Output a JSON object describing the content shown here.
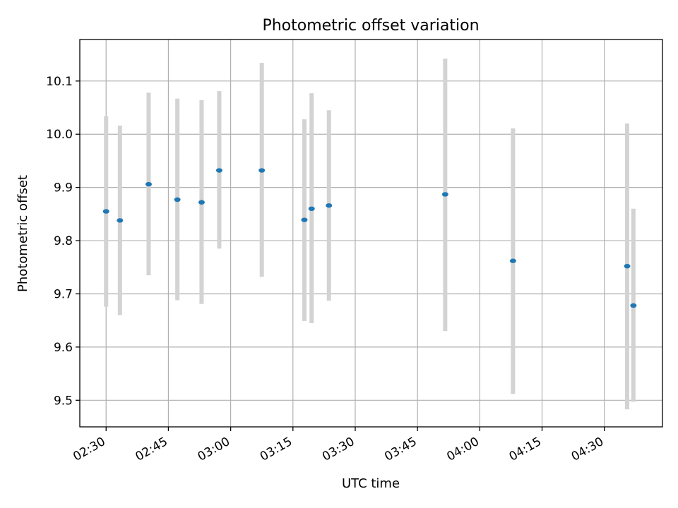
{
  "chart_data": {
    "type": "scatter",
    "title": "Photometric offset variation",
    "xlabel": "UTC time",
    "ylabel": "Photometric offset",
    "x_ticks": [
      "02:30",
      "02:45",
      "03:00",
      "03:15",
      "03:30",
      "03:45",
      "04:00",
      "04:15",
      "04:30"
    ],
    "xlim": [
      "02:23:40",
      "04:44:00"
    ],
    "ylim": [
      9.45,
      10.178
    ],
    "y_ticks": [
      "9.5",
      "9.6",
      "9.7",
      "9.8",
      "9.9",
      "10.0",
      "10.1"
    ],
    "grid": true,
    "colors": {
      "marker": "#1f77b4",
      "errorbar": "#d3d3d3"
    },
    "points": [
      {
        "t": "02:30:00",
        "y": 9.855,
        "lo": 9.676,
        "hi": 10.034
      },
      {
        "t": "02:33:20",
        "y": 9.838,
        "lo": 9.66,
        "hi": 10.016
      },
      {
        "t": "02:40:15",
        "y": 9.906,
        "lo": 9.735,
        "hi": 10.078
      },
      {
        "t": "02:47:10",
        "y": 9.877,
        "lo": 9.688,
        "hi": 10.067
      },
      {
        "t": "02:53:00",
        "y": 9.872,
        "lo": 9.681,
        "hi": 10.064
      },
      {
        "t": "02:57:15",
        "y": 9.932,
        "lo": 9.785,
        "hi": 10.081
      },
      {
        "t": "03:07:30",
        "y": 9.932,
        "lo": 9.732,
        "hi": 10.134
      },
      {
        "t": "03:17:45",
        "y": 9.839,
        "lo": 9.649,
        "hi": 10.028
      },
      {
        "t": "03:19:30",
        "y": 9.86,
        "lo": 9.645,
        "hi": 10.077
      },
      {
        "t": "03:23:40",
        "y": 9.866,
        "lo": 9.687,
        "hi": 10.045
      },
      {
        "t": "03:51:40",
        "y": 9.887,
        "lo": 9.63,
        "hi": 10.142
      },
      {
        "t": "04:08:00",
        "y": 9.762,
        "lo": 9.512,
        "hi": 10.011
      },
      {
        "t": "04:35:30",
        "y": 9.752,
        "lo": 9.483,
        "hi": 10.02
      },
      {
        "t": "04:37:00",
        "y": 9.678,
        "lo": 9.497,
        "hi": 9.86
      }
    ]
  }
}
